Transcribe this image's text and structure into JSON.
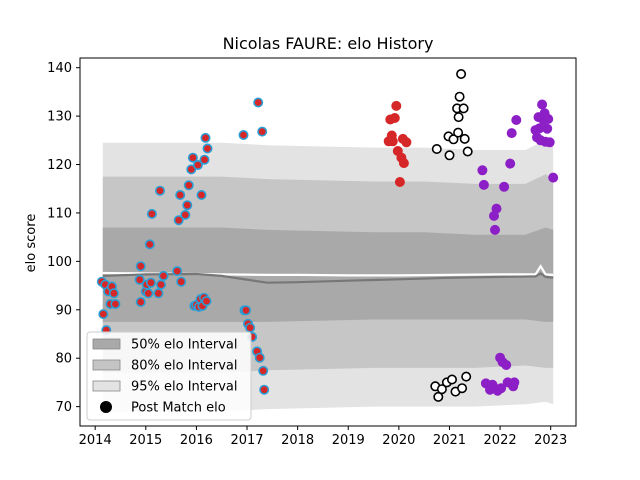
{
  "chart_data": {
    "type": "scatter",
    "title": "Nicolas FAURE: elo History",
    "xlabel": "",
    "ylabel": "elo score",
    "xlim": [
      2013.7,
      2023.5
    ],
    "ylim": [
      66,
      142
    ],
    "xticks": [
      "2014",
      "2015",
      "2016",
      "2017",
      "2018",
      "2019",
      "2020",
      "2021",
      "2022",
      "2023"
    ],
    "yticks": [
      "70",
      "80",
      "90",
      "100",
      "110",
      "120",
      "130",
      "140"
    ],
    "grid": false,
    "legend_position": "lower-left",
    "legend": [
      {
        "label": "50% elo Interval",
        "color": "#a9a9a9"
      },
      {
        "label": "80% elo Interval",
        "color": "#c4c4c4"
      },
      {
        "label": "95% elo Interval",
        "color": "#e3e3e3"
      },
      {
        "label": "Post Match elo",
        "color": "#000000"
      }
    ],
    "bands": {
      "x": [
        2014.15,
        2016.5,
        2017.4,
        2019.5,
        2020.5,
        2021.5,
        2022.5,
        2022.9,
        2023.05
      ],
      "p95_upper": [
        124.5,
        124.5,
        124,
        123.5,
        123.5,
        123,
        123,
        125,
        124
      ],
      "p95_lower": [
        69,
        69,
        69.5,
        70,
        70,
        70,
        70.5,
        71,
        70.5
      ],
      "p80_upper": [
        117.5,
        117.5,
        117,
        116.5,
        116.5,
        116,
        116,
        118,
        117
      ],
      "p80_lower": [
        77,
        77,
        77.5,
        78,
        78,
        78,
        78.5,
        78,
        78
      ],
      "p50_upper": [
        107,
        107,
        106.5,
        106,
        106,
        105.5,
        105.5,
        107,
        106.5
      ],
      "p50_lower": [
        87.5,
        87.5,
        87.5,
        88,
        88,
        88,
        88,
        87.5,
        87.5
      ]
    },
    "mean_line": {
      "color": "#777777",
      "x": [
        2014.15,
        2015,
        2016,
        2016.5,
        2017.4,
        2018,
        2019,
        2020,
        2021,
        2022,
        2022.7,
        2022.8,
        2022.9,
        2023.05
      ],
      "y": [
        97,
        97.3,
        97.4,
        97,
        95.6,
        95.7,
        96,
        96.3,
        96.6,
        96.8,
        96.9,
        97.5,
        96.8,
        96.6
      ]
    },
    "white_line": {
      "color": "#ffffff",
      "x": [
        2014.15,
        2015,
        2016,
        2016.5,
        2017.4,
        2018,
        2019,
        2020,
        2021,
        2022,
        2022.7,
        2022.8,
        2022.9,
        2023.05
      ],
      "y": [
        97.6,
        97.5,
        97.4,
        97.3,
        97.2,
        97.2,
        97.1,
        97.1,
        97.2,
        97.3,
        97.3,
        99,
        97.3,
        97.2
      ]
    },
    "series": [
      {
        "face": "#d62728",
        "edge": "#2a9fd6",
        "points": [
          [
            2014.13,
            95.8
          ],
          [
            2014.16,
            89.1
          ],
          [
            2014.2,
            95.2
          ],
          [
            2014.22,
            85.8
          ],
          [
            2014.26,
            93.8
          ],
          [
            2014.3,
            91.2
          ],
          [
            2014.33,
            94.8
          ],
          [
            2014.37,
            93.4
          ],
          [
            2014.4,
            91.2
          ],
          [
            2014.9,
            99.0
          ],
          [
            2014.88,
            96.2
          ],
          [
            2014.9,
            91.6
          ],
          [
            2015.0,
            93.8
          ],
          [
            2015.02,
            95.2
          ],
          [
            2015.05,
            93.4
          ],
          [
            2015.08,
            103.5
          ],
          [
            2015.1,
            95.6
          ],
          [
            2015.12,
            109.8
          ],
          [
            2015.25,
            93.4
          ],
          [
            2015.28,
            114.6
          ],
          [
            2015.3,
            95.2
          ],
          [
            2015.35,
            97.0
          ],
          [
            2015.62,
            98.0
          ],
          [
            2015.65,
            108.5
          ],
          [
            2015.68,
            113.7
          ],
          [
            2015.7,
            95.8
          ],
          [
            2015.78,
            109.6
          ],
          [
            2015.82,
            111.6
          ],
          [
            2015.85,
            115.7
          ],
          [
            2015.9,
            119.0
          ],
          [
            2015.93,
            121.4
          ],
          [
            2015.96,
            90.8
          ],
          [
            2016.0,
            91.0
          ],
          [
            2016.03,
            119.9
          ],
          [
            2016.05,
            90.6
          ],
          [
            2016.08,
            92.2
          ],
          [
            2016.1,
            113.7
          ],
          [
            2016.12,
            90.8
          ],
          [
            2016.15,
            92.5
          ],
          [
            2016.16,
            121.0
          ],
          [
            2016.18,
            125.5
          ],
          [
            2016.2,
            91.8
          ],
          [
            2016.22,
            123.3
          ],
          [
            2016.93,
            126.1
          ],
          [
            2016.95,
            89.9
          ],
          [
            2016.98,
            89.9
          ],
          [
            2017.02,
            87.1
          ],
          [
            2017.06,
            86.3
          ],
          [
            2017.1,
            84.4
          ],
          [
            2017.2,
            81.4
          ],
          [
            2017.22,
            132.8
          ],
          [
            2017.25,
            80.1
          ],
          [
            2017.3,
            126.8
          ],
          [
            2017.32,
            77.4
          ],
          [
            2017.34,
            73.5
          ]
        ]
      },
      {
        "face": "#d62728",
        "edge": "#d62728",
        "points": [
          [
            2019.8,
            124.8
          ],
          [
            2019.83,
            129.3
          ],
          [
            2019.86,
            126.0
          ],
          [
            2019.88,
            124.8
          ],
          [
            2019.92,
            129.6
          ],
          [
            2019.95,
            132.1
          ],
          [
            2019.98,
            122.8
          ],
          [
            2020.02,
            116.4
          ],
          [
            2020.05,
            121.4
          ],
          [
            2020.08,
            125.3
          ],
          [
            2020.1,
            120.3
          ],
          [
            2020.15,
            124.6
          ]
        ]
      },
      {
        "face": "#ffffff",
        "edge": "#000000",
        "points": [
          [
            2020.72,
            74.2
          ],
          [
            2020.75,
            123.2
          ],
          [
            2020.78,
            72.0
          ],
          [
            2020.85,
            73.6
          ],
          [
            2020.95,
            75.0
          ],
          [
            2020.98,
            125.8
          ],
          [
            2021.0,
            121.9
          ],
          [
            2021.05,
            75.6
          ],
          [
            2021.08,
            125.2
          ],
          [
            2021.12,
            73.1
          ],
          [
            2021.15,
            131.6
          ],
          [
            2021.17,
            126.6
          ],
          [
            2021.18,
            129.8
          ],
          [
            2021.2,
            134.0
          ],
          [
            2021.23,
            138.7
          ],
          [
            2021.25,
            73.8
          ],
          [
            2021.28,
            131.6
          ],
          [
            2021.3,
            125.3
          ],
          [
            2021.33,
            76.2
          ],
          [
            2021.36,
            122.7
          ]
        ]
      },
      {
        "face": "#8c1fc6",
        "edge": "#8c1fc6",
        "points": [
          [
            2021.65,
            118.8
          ],
          [
            2021.68,
            115.8
          ],
          [
            2021.72,
            74.8
          ],
          [
            2021.8,
            73.5
          ],
          [
            2021.85,
            74.5
          ],
          [
            2021.88,
            109.4
          ],
          [
            2021.9,
            106.5
          ],
          [
            2021.93,
            110.9
          ],
          [
            2021.95,
            73.3
          ],
          [
            2022.0,
            80.1
          ],
          [
            2022.02,
            73.8
          ],
          [
            2022.05,
            79.2
          ],
          [
            2022.08,
            115.4
          ],
          [
            2022.12,
            78.6
          ],
          [
            2022.15,
            75.0
          ],
          [
            2022.2,
            120.2
          ],
          [
            2022.23,
            126.5
          ],
          [
            2022.26,
            74.2
          ],
          [
            2022.28,
            75.0
          ],
          [
            2022.32,
            129.2
          ],
          [
            2022.7,
            127.1
          ],
          [
            2022.73,
            125.6
          ],
          [
            2022.76,
            129.8
          ],
          [
            2022.78,
            127.5
          ],
          [
            2022.8,
            125.0
          ],
          [
            2022.83,
            132.4
          ],
          [
            2022.86,
            129.2
          ],
          [
            2022.88,
            130.6
          ],
          [
            2022.9,
            124.7
          ],
          [
            2022.93,
            127.4
          ],
          [
            2022.95,
            129.4
          ],
          [
            2022.98,
            124.6
          ],
          [
            2023.05,
            117.3
          ]
        ]
      }
    ]
  }
}
